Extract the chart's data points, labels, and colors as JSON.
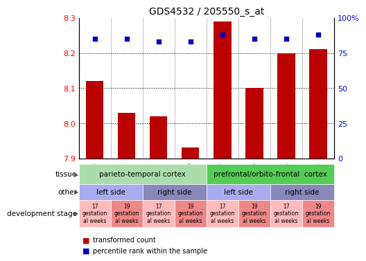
{
  "title": "GDS4532 / 205550_s_at",
  "samples": [
    "GSM543633",
    "GSM543632",
    "GSM543631",
    "GSM543630",
    "GSM543637",
    "GSM543636",
    "GSM543635",
    "GSM543634"
  ],
  "bar_values": [
    8.12,
    8.03,
    8.02,
    7.93,
    8.29,
    8.1,
    8.2,
    8.21
  ],
  "bar_baseline": 7.9,
  "percentile_values": [
    85,
    85,
    83,
    83,
    88,
    85,
    85,
    88
  ],
  "left_yticks": [
    7.9,
    8.0,
    8.1,
    8.2,
    8.3
  ],
  "right_yticks": [
    0,
    25,
    50,
    75,
    100
  ],
  "right_ytick_labels": [
    "0",
    "25",
    "50",
    "75",
    "100%"
  ],
  "bar_color": "#bb0000",
  "percentile_color": "#0000bb",
  "tissue_row": [
    {
      "label": "parieto-temporal cortex",
      "start": 0,
      "end": 4,
      "color": "#aaddaa"
    },
    {
      "label": "prefrontal/orbito-frontal  cortex",
      "start": 4,
      "end": 8,
      "color": "#55cc55"
    }
  ],
  "other_row": [
    {
      "label": "left side",
      "start": 0,
      "end": 2,
      "color": "#aaaaee"
    },
    {
      "label": "right side",
      "start": 2,
      "end": 4,
      "color": "#8888bb"
    },
    {
      "label": "left side",
      "start": 4,
      "end": 6,
      "color": "#aaaaee"
    },
    {
      "label": "right side",
      "start": 6,
      "end": 8,
      "color": "#8888bb"
    }
  ],
  "dev_row": [
    {
      "label": "17\ngestation\nal weeks",
      "start": 0,
      "end": 1,
      "color": "#ffbbbb"
    },
    {
      "label": "19\ngestation\nal weeks",
      "start": 1,
      "end": 2,
      "color": "#ee8888"
    },
    {
      "label": "17\ngestation\nal weeks",
      "start": 2,
      "end": 3,
      "color": "#ffbbbb"
    },
    {
      "label": "19\ngestation\nal weeks",
      "start": 3,
      "end": 4,
      "color": "#ee8888"
    },
    {
      "label": "17\ngestation\nal weeks",
      "start": 4,
      "end": 5,
      "color": "#ffbbbb"
    },
    {
      "label": "19\ngestation\nal weeks",
      "start": 5,
      "end": 6,
      "color": "#ee8888"
    },
    {
      "label": "17\ngestation\nal weeks",
      "start": 6,
      "end": 7,
      "color": "#ffbbbb"
    },
    {
      "label": "19\ngestation\nal weeks",
      "start": 7,
      "end": 8,
      "color": "#ee8888"
    }
  ],
  "ylim": [
    7.9,
    8.3
  ],
  "background_color": "#ffffff",
  "grid_yticks": [
    8.0,
    8.1,
    8.2
  ],
  "legend_items": [
    {
      "label": "transformed count",
      "color": "#bb0000"
    },
    {
      "label": "percentile rank within the sample",
      "color": "#0000bb"
    }
  ]
}
